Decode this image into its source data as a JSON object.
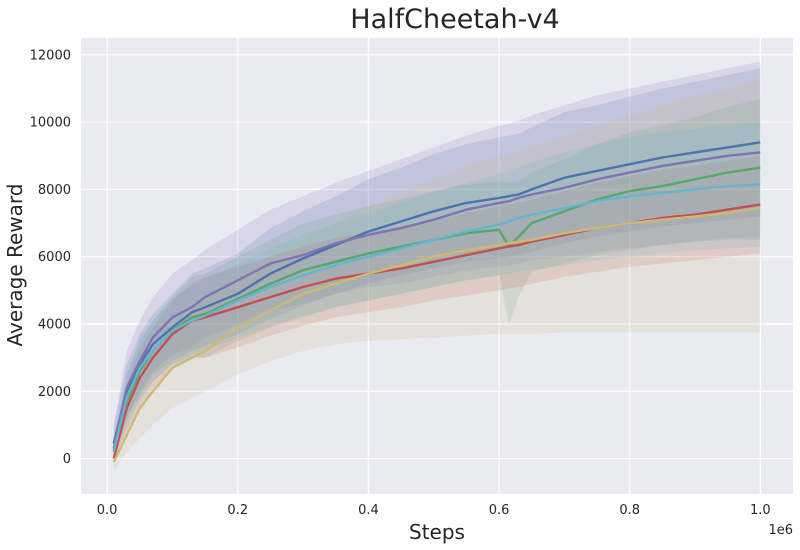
{
  "chart_data": {
    "type": "line",
    "title": "HalfCheetah-v4",
    "xlabel": "Steps",
    "ylabel": "Average Reward",
    "x_offset_label": "1e6",
    "xlim": [
      -0.04,
      1.05
    ],
    "ylim": [
      -1050,
      12500
    ],
    "x_ticks": [
      0.0,
      0.2,
      0.4,
      0.6,
      0.8,
      1.0
    ],
    "x_tick_labels": [
      "0.0",
      "0.2",
      "0.4",
      "0.6",
      "0.8",
      "1.0"
    ],
    "y_ticks": [
      0,
      2000,
      4000,
      6000,
      8000,
      10000,
      12000
    ],
    "y_tick_labels": [
      "0",
      "2000",
      "4000",
      "6000",
      "8000",
      "10000",
      "12000"
    ],
    "grid": true,
    "legend": "none",
    "x": [
      0.01,
      0.03,
      0.05,
      0.07,
      0.1,
      0.13,
      0.15,
      0.2,
      0.25,
      0.3,
      0.35,
      0.4,
      0.45,
      0.5,
      0.55,
      0.6,
      0.615,
      0.63,
      0.65,
      0.7,
      0.75,
      0.8,
      0.85,
      0.9,
      0.95,
      1.0
    ],
    "series": [
      {
        "name": "blue",
        "color": "#4c72b0",
        "values": [
          450,
          2000,
          2800,
          3400,
          3900,
          4350,
          4500,
          4900,
          5500,
          5950,
          6350,
          6750,
          7050,
          7350,
          7600,
          7750,
          7800,
          7850,
          8000,
          8350,
          8550,
          8750,
          8950,
          9100,
          9250,
          9400
        ],
        "lower": [
          0,
          1200,
          1900,
          2500,
          2900,
          3200,
          3350,
          3700,
          4150,
          4550,
          4900,
          5200,
          5450,
          5650,
          5850,
          5950,
          6000,
          6050,
          6150,
          6400,
          6600,
          6750,
          6900,
          7000,
          7100,
          7200
        ],
        "upper": [
          900,
          2800,
          3700,
          4300,
          4900,
          5500,
          5650,
          6100,
          6850,
          7350,
          7800,
          8300,
          8650,
          9050,
          9350,
          9550,
          9600,
          9650,
          9850,
          10300,
          10500,
          10750,
          11000,
          11200,
          11400,
          11600
        ]
      },
      {
        "name": "green",
        "color": "#55a868",
        "values": [
          200,
          1700,
          2600,
          3200,
          3800,
          4200,
          4300,
          4750,
          5200,
          5600,
          5850,
          6100,
          6300,
          6500,
          6700,
          6800,
          6300,
          6600,
          7000,
          7350,
          7700,
          7950,
          8100,
          8300,
          8500,
          8650
        ],
        "lower": [
          0,
          900,
          1700,
          2300,
          2800,
          3000,
          3000,
          3500,
          3900,
          4200,
          4500,
          4700,
          4900,
          5100,
          5300,
          5450,
          4000,
          4800,
          5550,
          5800,
          6050,
          6200,
          6350,
          6450,
          6550,
          6600
        ],
        "upper": [
          600,
          2500,
          3500,
          4100,
          4800,
          5400,
          5500,
          6000,
          6500,
          7000,
          7250,
          7500,
          7700,
          7950,
          8150,
          8250,
          8200,
          8250,
          8500,
          8900,
          9350,
          9700,
          9900,
          10150,
          10450,
          10700
        ]
      },
      {
        "name": "red",
        "color": "#c44e52",
        "values": [
          0,
          1500,
          2400,
          3000,
          3700,
          4100,
          4200,
          4500,
          4800,
          5100,
          5350,
          5500,
          5650,
          5850,
          6050,
          6250,
          6300,
          6350,
          6450,
          6650,
          6850,
          7000,
          7150,
          7250,
          7400,
          7550
        ],
        "lower": [
          0,
          800,
          1500,
          2100,
          2700,
          3000,
          3000,
          3300,
          3650,
          3950,
          4200,
          4350,
          4500,
          4700,
          4850,
          5000,
          5050,
          5100,
          5200,
          5400,
          5550,
          5700,
          5800,
          5900,
          6000,
          6100
        ],
        "upper": [
          400,
          2200,
          3300,
          3900,
          4700,
          5200,
          5400,
          5700,
          6000,
          6300,
          6550,
          6750,
          6900,
          7050,
          7300,
          7500,
          7550,
          7600,
          7700,
          7950,
          8200,
          8400,
          8600,
          8700,
          8850,
          9000
        ]
      },
      {
        "name": "purple",
        "color": "#8172b2",
        "values": [
          300,
          2100,
          2900,
          3600,
          4200,
          4500,
          4800,
          5300,
          5800,
          6050,
          6400,
          6650,
          6850,
          7100,
          7400,
          7600,
          7650,
          7750,
          7850,
          8050,
          8300,
          8500,
          8700,
          8850,
          9000,
          9100
        ],
        "lower": [
          0,
          1300,
          2000,
          2600,
          3100,
          3300,
          3600,
          4000,
          4400,
          4600,
          4900,
          5100,
          5200,
          5400,
          5600,
          5700,
          5750,
          5800,
          5900,
          6000,
          6150,
          6250,
          6350,
          6450,
          6500,
          6500
        ],
        "upper": [
          1000,
          3200,
          4100,
          4800,
          5500,
          5900,
          6200,
          6800,
          7400,
          7800,
          8200,
          8550,
          8900,
          9250,
          9600,
          9900,
          9950,
          10050,
          10200,
          10500,
          10800,
          11000,
          11200,
          11400,
          11600,
          11800
        ]
      },
      {
        "name": "yellow",
        "color": "#ccb974",
        "values": [
          -100,
          700,
          1500,
          2000,
          2700,
          3000,
          3200,
          3900,
          4400,
          4900,
          5200,
          5500,
          5750,
          6000,
          6200,
          6350,
          6400,
          6450,
          6500,
          6700,
          6850,
          7000,
          7100,
          7200,
          7300,
          7450
        ],
        "lower": [
          -400,
          200,
          600,
          1000,
          1500,
          1800,
          2000,
          2500,
          2900,
          3200,
          3400,
          3500,
          3550,
          3600,
          3650,
          3700,
          3700,
          3700,
          3700,
          3750,
          3750,
          3750,
          3750,
          3750,
          3750,
          3750
        ],
        "upper": [
          300,
          1400,
          2400,
          3100,
          4000,
          4500,
          4700,
          5400,
          6000,
          6500,
          7000,
          7500,
          7900,
          8300,
          8700,
          9000,
          9050,
          9100,
          9250,
          9600,
          9900,
          10200,
          10500,
          10800,
          11000,
          11300
        ]
      },
      {
        "name": "cyan",
        "color": "#64b5cd",
        "values": [
          200,
          1800,
          2700,
          3200,
          3800,
          4100,
          4250,
          4700,
          5100,
          5450,
          5750,
          6000,
          6250,
          6500,
          6750,
          6950,
          7050,
          7150,
          7250,
          7450,
          7650,
          7800,
          7900,
          8000,
          8100,
          8150
        ],
        "lower": [
          0,
          1100,
          1800,
          2300,
          2800,
          3100,
          3200,
          3600,
          3950,
          4250,
          4500,
          4700,
          4900,
          5100,
          5300,
          5450,
          5500,
          5550,
          5600,
          5750,
          5900,
          6000,
          6100,
          6200,
          6250,
          6300
        ],
        "upper": [
          500,
          2500,
          3600,
          4100,
          4800,
          5100,
          5300,
          5800,
          6250,
          6650,
          7000,
          7300,
          7600,
          7900,
          8200,
          8450,
          8550,
          8650,
          8800,
          9100,
          9350,
          9550,
          9700,
          9800,
          9950,
          10000
        ]
      }
    ]
  }
}
